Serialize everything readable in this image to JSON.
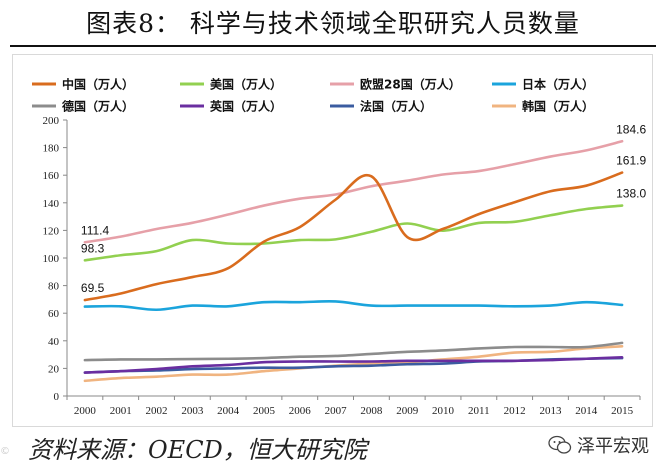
{
  "page_title": "图表8：  科学与技术领域全职研究人员数量",
  "source_text": "资料来源：OECD，恒大研究院",
  "watermark_left": "©",
  "watermark_right": "泽平宏观",
  "chart_data": {
    "type": "line",
    "title": "图表8：  科学与技术领域全职研究人员数量",
    "xlabel": "",
    "ylabel": "",
    "ylim": [
      0,
      200
    ],
    "yticks": [
      0,
      20,
      40,
      60,
      80,
      100,
      120,
      140,
      160,
      180,
      200
    ],
    "grid": false,
    "legend_position": "top",
    "categories": [
      "2000",
      "2001",
      "2002",
      "2003",
      "2004",
      "2005",
      "2006",
      "2007",
      "2008",
      "2009",
      "2010",
      "2011",
      "2012",
      "2013",
      "2014",
      "2015"
    ],
    "series": [
      {
        "name": "中国（万人）",
        "color": "#d96c1e",
        "values": [
          69.5,
          74.3,
          81.1,
          86.2,
          92.6,
          111.9,
          122.4,
          142.3,
          159.2,
          115.2,
          121.1,
          131.8,
          140.4,
          148.4,
          152.4,
          161.9
        ]
      },
      {
        "name": "美国（万人）",
        "color": "#92d050",
        "values": [
          98.3,
          102.0,
          105.0,
          113.0,
          110.5,
          110.5,
          113.0,
          113.5,
          119.0,
          125.0,
          119.8,
          125.4,
          126.2,
          131.0,
          135.5,
          138.0
        ]
      },
      {
        "name": "欧盟28国（万人）",
        "color": "#e6a0a8",
        "values": [
          111.4,
          115.5,
          121.0,
          125.5,
          131.5,
          138.0,
          143.0,
          146.0,
          152.0,
          156.0,
          160.5,
          163.0,
          168.0,
          173.5,
          178.0,
          184.6
        ]
      },
      {
        "name": "日本（万人）",
        "color": "#1ba4dc",
        "values": [
          64.8,
          65.0,
          62.5,
          65.5,
          65.0,
          68.0,
          68.0,
          68.5,
          65.5,
          65.5,
          65.5,
          65.5,
          65.0,
          65.5,
          68.0,
          66.0
        ]
      },
      {
        "name": "德国（万人）",
        "color": "#8c8c8c",
        "values": [
          26.0,
          26.5,
          26.5,
          26.8,
          27.0,
          27.5,
          28.5,
          29.0,
          30.5,
          32.0,
          33.0,
          34.5,
          35.5,
          35.5,
          35.5,
          38.5
        ]
      },
      {
        "name": "英国（万人）",
        "color": "#6a2ea0",
        "values": [
          17.0,
          18.0,
          19.5,
          21.5,
          22.5,
          24.5,
          25.0,
          25.0,
          25.0,
          25.5,
          25.5,
          25.5,
          25.5,
          26.0,
          27.0,
          28.0
        ]
      },
      {
        "name": "法国（万人）",
        "color": "#3b5ca0",
        "values": [
          17.0,
          18.0,
          18.5,
          19.5,
          20.0,
          20.5,
          20.5,
          21.5,
          22.0,
          23.0,
          23.5,
          25.0,
          25.5,
          26.5,
          27.0,
          27.5
        ]
      },
      {
        "name": "韩国（万人）",
        "color": "#f0b480",
        "values": [
          11.0,
          13.0,
          14.0,
          15.5,
          15.5,
          18.0,
          20.0,
          22.0,
          23.5,
          24.5,
          26.5,
          28.5,
          31.5,
          32.0,
          34.5,
          36.0
        ]
      }
    ],
    "annotations": [
      {
        "series": 0,
        "index": 0,
        "text": "69.5"
      },
      {
        "series": 1,
        "index": 0,
        "text": "98.3"
      },
      {
        "series": 2,
        "index": 0,
        "text": "111.4"
      },
      {
        "series": 0,
        "index": 15,
        "text": "161.9"
      },
      {
        "series": 1,
        "index": 15,
        "text": "138.0"
      },
      {
        "series": 2,
        "index": 15,
        "text": "184.6"
      }
    ]
  }
}
